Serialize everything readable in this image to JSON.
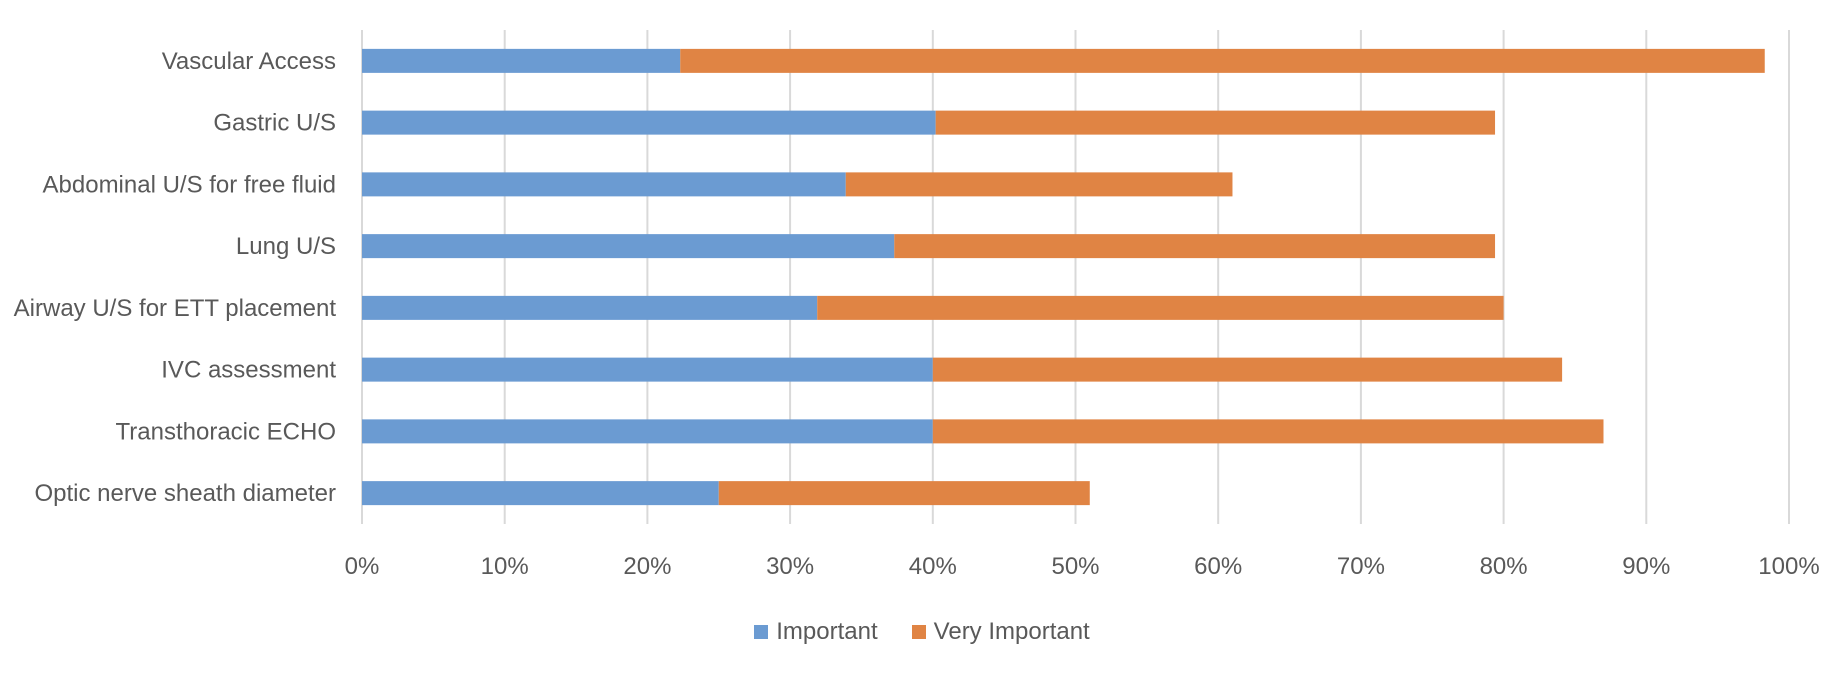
{
  "chart_data": {
    "type": "bar",
    "orientation": "horizontal",
    "stacked": true,
    "categories": [
      "Vascular Access",
      "Gastric U/S",
      "Abdominal U/S for free fluid",
      "Lung U/S",
      "Airway U/S for ETT placement",
      "IVC assessment",
      "Transthoracic ECHO",
      "Optic nerve sheath diameter"
    ],
    "series": [
      {
        "name": "Important",
        "color": "#6B9BD2",
        "values": [
          22.3,
          40.2,
          33.9,
          37.3,
          31.9,
          40.0,
          40.0,
          25.0
        ]
      },
      {
        "name": "Very Important",
        "color": "#E08444",
        "values": [
          76.0,
          39.2,
          27.1,
          42.1,
          48.1,
          44.1,
          47.0,
          26.0
        ]
      }
    ],
    "xlim": [
      0,
      100
    ],
    "x_ticks": [
      "0%",
      "10%",
      "20%",
      "30%",
      "40%",
      "50%",
      "60%",
      "70%",
      "80%",
      "90%",
      "100%"
    ],
    "gridlines": true,
    "legend_position": "bottom",
    "title": "",
    "xlabel": "",
    "ylabel": ""
  }
}
